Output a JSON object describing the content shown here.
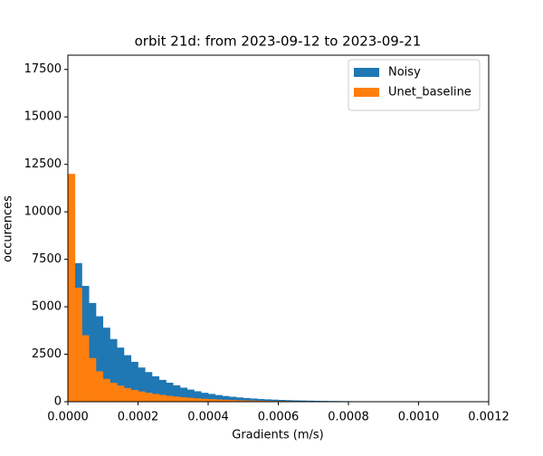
{
  "chart_data": {
    "type": "histogram",
    "title": "orbit 21d: from 2023-09-12 to 2023-09-21",
    "xlabel": "Gradients (m/s)",
    "ylabel": "occurences",
    "bins": [
      0,
      2e-05,
      4e-05,
      6e-05,
      8e-05,
      0.0001,
      0.00012,
      0.00014,
      0.00016,
      0.00018,
      0.0002,
      0.00022,
      0.00024,
      0.00026,
      0.00028,
      0.0003,
      0.00032,
      0.00034,
      0.00036,
      0.00038,
      0.0004,
      0.00042,
      0.00044,
      0.00046,
      0.00048,
      0.0005,
      0.00052,
      0.00054,
      0.00056,
      0.00058,
      0.0006,
      0.00062,
      0.00064,
      0.00066,
      0.00068,
      0.0007,
      0.00072,
      0.00074,
      0.00076,
      0.00078,
      0.0008,
      0.00082,
      0.00084,
      0.00086,
      0.00088,
      0.0009,
      0.00092,
      0.00094,
      0.00096,
      0.00098,
      0.001,
      0.00102,
      0.00104,
      0.00106,
      0.00108,
      0.0011,
      0.00112,
      0.00114,
      0.00116,
      0.00118,
      0.0012
    ],
    "series": [
      {
        "name": "Noisy",
        "color": "#1f77b4",
        "values": [
          10000,
          7300,
          6100,
          5200,
          4500,
          3900,
          3300,
          2850,
          2450,
          2100,
          1800,
          1560,
          1340,
          1150,
          1000,
          860,
          740,
          640,
          550,
          470,
          410,
          350,
          300,
          260,
          225,
          195,
          170,
          145,
          125,
          110,
          95,
          82,
          72,
          63,
          55,
          48,
          42,
          37,
          33,
          29,
          26,
          23,
          21,
          19,
          17,
          15,
          14,
          13,
          12,
          11,
          10,
          9,
          9,
          8,
          8,
          7,
          7,
          6,
          6,
          5
        ]
      },
      {
        "name": "Unet_baseline",
        "color": "#ff7f0e",
        "values": [
          12000,
          6000,
          3500,
          2300,
          1600,
          1200,
          1000,
          850,
          720,
          620,
          540,
          470,
          410,
          360,
          310,
          270,
          235,
          205,
          180,
          155,
          135,
          118,
          103,
          90,
          78,
          68,
          60,
          52,
          45,
          40,
          35,
          30,
          26,
          23,
          20,
          18,
          16,
          14,
          12,
          11,
          10,
          9,
          8,
          7,
          6,
          6,
          5,
          5,
          4,
          4,
          4,
          3,
          3,
          3,
          2,
          2,
          2,
          2,
          1,
          1
        ]
      }
    ],
    "xlim": [
      0,
      0.0012
    ],
    "xticks": [
      {
        "value": 0,
        "label": "0.0000"
      },
      {
        "value": 0.0002,
        "label": "0.0002"
      },
      {
        "value": 0.0004,
        "label": "0.0004"
      },
      {
        "value": 0.0006,
        "label": "0.0006"
      },
      {
        "value": 0.0008,
        "label": "0.0008"
      },
      {
        "value": 0.001,
        "label": "0.0010"
      },
      {
        "value": 0.0012,
        "label": "0.0012"
      }
    ],
    "ylim": [
      0,
      18250
    ],
    "yticks": [
      0,
      2500,
      5000,
      7500,
      10000,
      12500,
      15000,
      17500
    ],
    "legend": "upper right"
  }
}
